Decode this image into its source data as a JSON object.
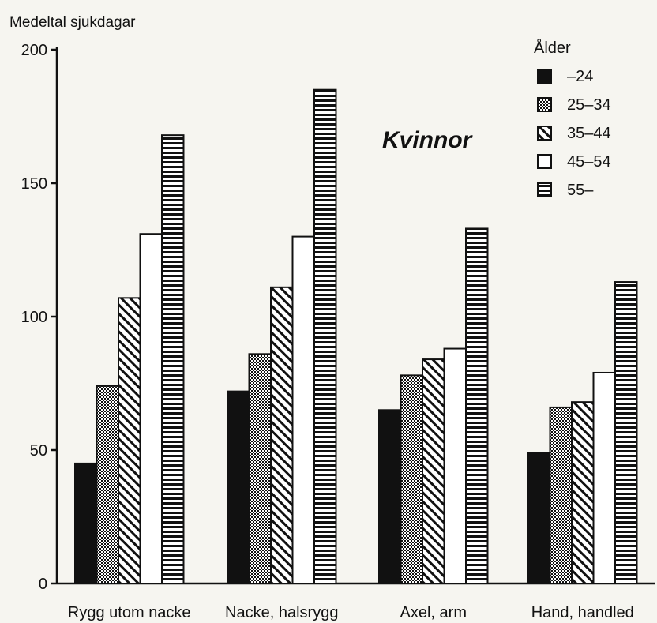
{
  "chart_data": {
    "type": "bar",
    "title": "Kvinnor",
    "ylabel": "Medeltal sjukdagar",
    "xlabel": "",
    "ylim": [
      0,
      200
    ],
    "yticks": [
      0,
      50,
      100,
      150,
      200
    ],
    "categories": [
      "Rygg utom nacke",
      "Nacke, halsrygg",
      "Axel, arm",
      "Hand, handled"
    ],
    "legend_title": "Ålder",
    "legend_position": "top-right",
    "grid": false,
    "series": [
      {
        "name": "–24",
        "pattern": "solid",
        "values": [
          45,
          72,
          65,
          49
        ]
      },
      {
        "name": "25–34",
        "pattern": "checker",
        "values": [
          74,
          86,
          78,
          66
        ]
      },
      {
        "name": "35–44",
        "pattern": "diagonal",
        "values": [
          107,
          111,
          84,
          68
        ]
      },
      {
        "name": "45–54",
        "pattern": "white",
        "values": [
          131,
          130,
          88,
          79
        ]
      },
      {
        "name": "55–",
        "pattern": "horizontal",
        "values": [
          168,
          185,
          133,
          113
        ]
      }
    ]
  },
  "colors": {
    "ink": "#111111",
    "background": "#f6f5f0"
  }
}
